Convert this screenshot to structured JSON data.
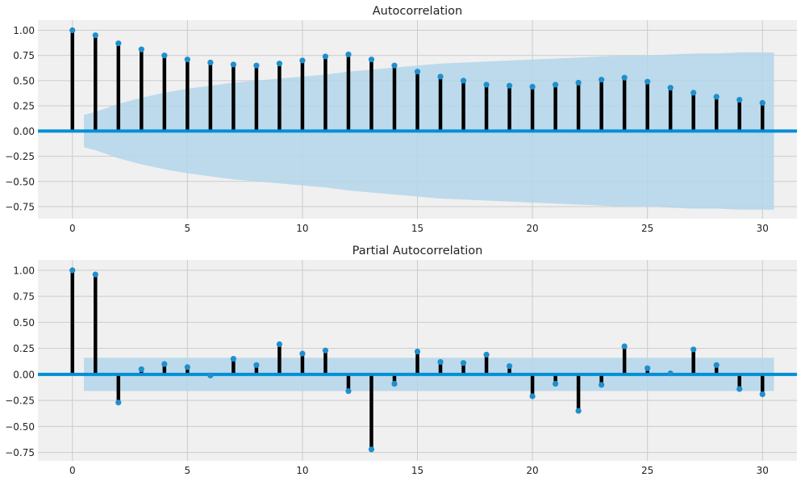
{
  "chart_data": [
    {
      "type": "stem",
      "title": "Autocorrelation",
      "xlabel": "",
      "ylabel": "",
      "xlim": [
        -1.5,
        31.5
      ],
      "ylim": [
        -0.87,
        1.1
      ],
      "xticks": [
        0,
        5,
        10,
        15,
        20,
        25,
        30
      ],
      "yticks": [
        1.0,
        0.75,
        0.5,
        0.25,
        0.0,
        -0.25,
        -0.5,
        -0.75
      ],
      "ytick_labels": [
        "1.00",
        "0.75",
        "0.50",
        "0.25",
        "0.00",
        "−0.25",
        "−0.50",
        "−0.75"
      ],
      "grid": true,
      "lags": [
        0,
        1,
        2,
        3,
        4,
        5,
        6,
        7,
        8,
        9,
        10,
        11,
        12,
        13,
        14,
        15,
        16,
        17,
        18,
        19,
        20,
        21,
        22,
        23,
        24,
        25,
        26,
        27,
        28,
        29,
        30
      ],
      "values": [
        1.0,
        0.95,
        0.87,
        0.81,
        0.75,
        0.71,
        0.68,
        0.66,
        0.65,
        0.67,
        0.7,
        0.74,
        0.76,
        0.71,
        0.65,
        0.59,
        0.54,
        0.5,
        0.46,
        0.45,
        0.44,
        0.46,
        0.48,
        0.51,
        0.53,
        0.49,
        0.43,
        0.38,
        0.34,
        0.31,
        0.28
      ],
      "confidence_band": {
        "lags": [
          0.5,
          1,
          2,
          3,
          4,
          5,
          6,
          7,
          8,
          9,
          10,
          11,
          12,
          13,
          14,
          15,
          16,
          17,
          18,
          19,
          20,
          21,
          22,
          23,
          24,
          25,
          26,
          27,
          28,
          29,
          30,
          30.5
        ],
        "upper": [
          0.16,
          0.19,
          0.27,
          0.33,
          0.38,
          0.42,
          0.45,
          0.48,
          0.5,
          0.52,
          0.54,
          0.56,
          0.59,
          0.61,
          0.63,
          0.65,
          0.67,
          0.68,
          0.69,
          0.7,
          0.71,
          0.72,
          0.73,
          0.74,
          0.75,
          0.75,
          0.76,
          0.77,
          0.77,
          0.78,
          0.78,
          0.78
        ]
      },
      "colors": {
        "stem": "#000000",
        "marker": "#1f8fcd",
        "zero_line": "#008fd5",
        "band": "#b3d6ea",
        "background": "#f0f0f0",
        "grid": "#cbcbcb"
      }
    },
    {
      "type": "stem",
      "title": "Partial Autocorrelation",
      "xlabel": "",
      "ylabel": "",
      "xlim": [
        -1.5,
        31.5
      ],
      "ylim": [
        -0.83,
        1.1
      ],
      "xticks": [
        0,
        5,
        10,
        15,
        20,
        25,
        30
      ],
      "yticks": [
        1.0,
        0.75,
        0.5,
        0.25,
        0.0,
        -0.25,
        -0.5,
        -0.75
      ],
      "ytick_labels": [
        "1.00",
        "0.75",
        "0.50",
        "0.25",
        "0.00",
        "−0.25",
        "−0.50",
        "−0.75"
      ],
      "grid": true,
      "lags": [
        0,
        1,
        2,
        3,
        4,
        5,
        6,
        7,
        8,
        9,
        10,
        11,
        12,
        13,
        14,
        15,
        16,
        17,
        18,
        19,
        20,
        21,
        22,
        23,
        24,
        25,
        26,
        27,
        28,
        29,
        30
      ],
      "values": [
        1.0,
        0.96,
        -0.27,
        0.05,
        0.1,
        0.07,
        -0.01,
        0.15,
        0.09,
        0.29,
        0.2,
        0.23,
        -0.16,
        -0.72,
        -0.09,
        0.22,
        0.12,
        0.11,
        0.19,
        0.08,
        -0.21,
        -0.09,
        -0.35,
        -0.1,
        0.27,
        0.06,
        0.01,
        0.24,
        0.09,
        -0.14,
        -0.19
      ],
      "confidence_band": {
        "lags": [
          0.5,
          30.5
        ],
        "upper": [
          0.16,
          0.16
        ]
      },
      "colors": {
        "stem": "#000000",
        "marker": "#1f8fcd",
        "zero_line": "#008fd5",
        "band": "#b3d6ea",
        "background": "#f0f0f0",
        "grid": "#cbcbcb"
      }
    }
  ]
}
